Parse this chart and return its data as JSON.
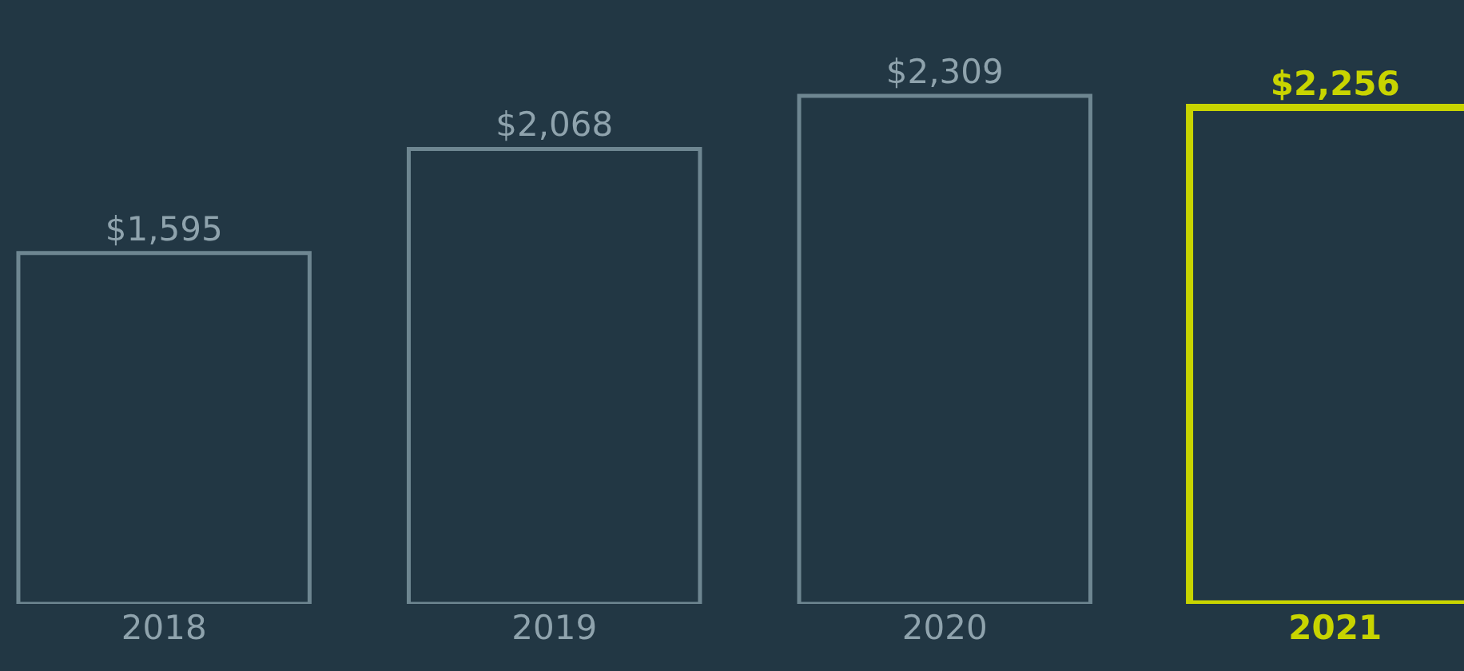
{
  "chart_data": {
    "type": "bar",
    "categories": [
      "2018",
      "2019",
      "2020",
      "2021"
    ],
    "values": [
      1595,
      2068,
      2309,
      2256
    ],
    "colors": [
      "#6e8691",
      "#6e8691",
      "#6e8691",
      "#c8d400"
    ],
    "value_labels": [
      "$1,595",
      "$2,068",
      "$2,309",
      "$2,256"
    ]
  }
}
